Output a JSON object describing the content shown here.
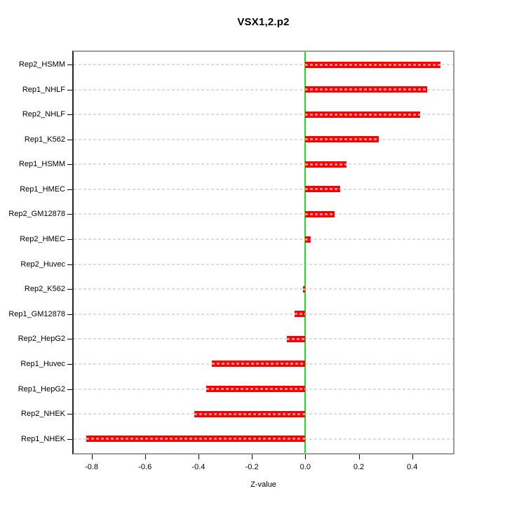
{
  "title": "VSX1,2.p2",
  "chart_data": {
    "type": "bar",
    "orientation": "horizontal",
    "title": "VSX1,2.p2",
    "xlabel": "Z-value",
    "ylabel": "",
    "categories": [
      "Rep2_HSMM",
      "Rep1_NHLF",
      "Rep2_NHLF",
      "Rep1_K562",
      "Rep1_HSMM",
      "Rep1_HMEC",
      "Rep2_GM12878",
      "Rep2_HMEC",
      "Rep2_Huvec",
      "Rep2_K562",
      "Rep1_GM12878",
      "Rep2_HepG2",
      "Rep1_Huvec",
      "Rep1_HepG2",
      "Rep2_NHEK",
      "Rep1_NHEK"
    ],
    "values": [
      0.505,
      0.455,
      0.43,
      0.275,
      0.155,
      0.13,
      0.11,
      0.02,
      0.0,
      -0.01,
      -0.04,
      -0.07,
      -0.35,
      -0.37,
      -0.415,
      -0.82
    ],
    "xlim": [
      -0.867,
      0.553
    ],
    "xticks": [
      -0.8,
      -0.6,
      -0.4,
      -0.2,
      0.0,
      0.2,
      0.4
    ],
    "xtick_labels": [
      "-0.8",
      "-0.6",
      "-0.4",
      "-0.2",
      "0.0",
      "0.2",
      "0.4"
    ],
    "grid": true,
    "grid_color": "#dcdcdc",
    "bar_color": "#fa0000",
    "zero_line_color": "#1fdd1f",
    "legend": null
  }
}
